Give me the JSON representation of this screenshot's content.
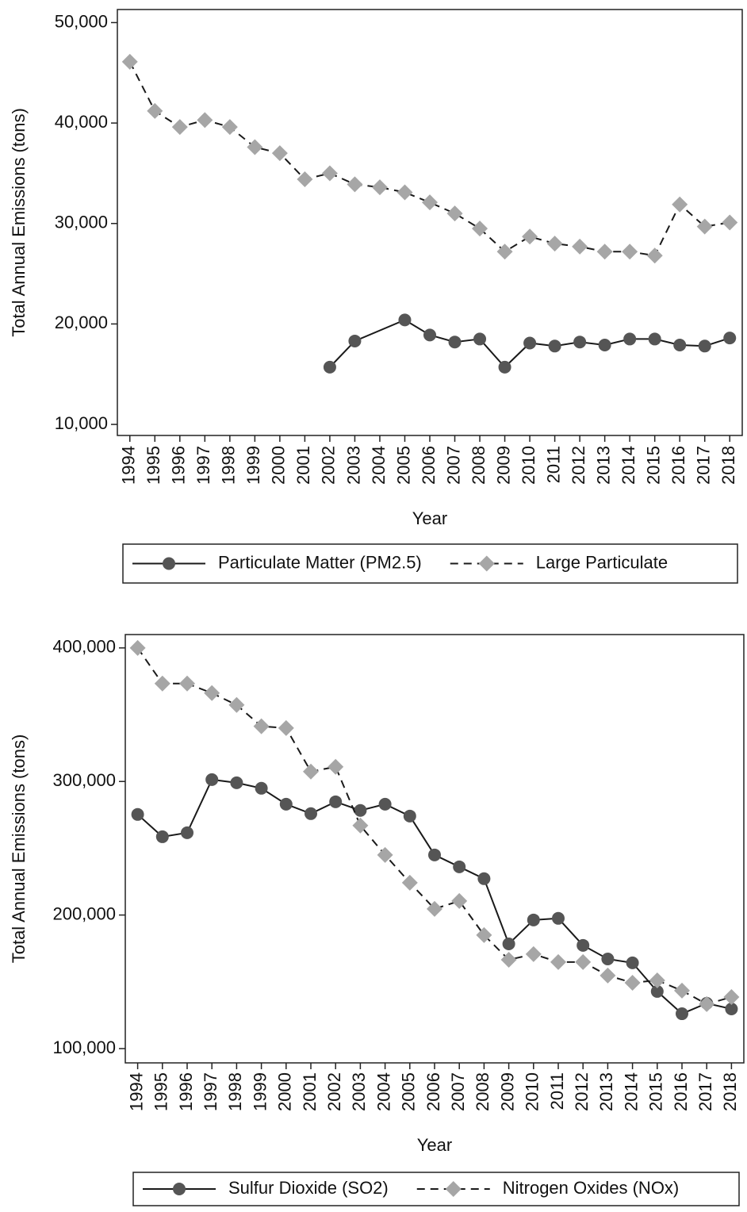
{
  "chart_data": [
    {
      "type": "line",
      "ylabel": "Total Annual Emissions (tons)",
      "xlabel": "Year",
      "x": [
        1994,
        1995,
        1996,
        1997,
        1998,
        1999,
        2000,
        2001,
        2002,
        2003,
        2004,
        2005,
        2006,
        2007,
        2008,
        2009,
        2010,
        2011,
        2012,
        2013,
        2014,
        2015,
        2016,
        2017,
        2018
      ],
      "xlim": [
        1993.5,
        2018.5
      ],
      "xticks": [
        1994,
        1995,
        1996,
        1997,
        1998,
        1999,
        2000,
        2001,
        2002,
        2003,
        2004,
        2005,
        2006,
        2007,
        2008,
        2009,
        2010,
        2011,
        2012,
        2013,
        2014,
        2015,
        2016,
        2017,
        2018
      ],
      "ylim": [
        8900,
        51300
      ],
      "yticks": [
        {
          "value": 10000,
          "label": "10,000"
        },
        {
          "value": 20000,
          "label": "20,000"
        },
        {
          "value": 30000,
          "label": "30,000"
        },
        {
          "value": 40000,
          "label": "40,000"
        },
        {
          "value": 50000,
          "label": "50,000"
        }
      ],
      "series": [
        {
          "name": "Particulate Matter (PM2.5)",
          "color": "#555555",
          "line_color": "#1a1a1a",
          "marker": "circle",
          "dashed": false,
          "x": [
            2002,
            2003,
            2005,
            2006,
            2007,
            2008,
            2009,
            2010,
            2011,
            2012,
            2013,
            2014,
            2015,
            2016,
            2017,
            2018
          ],
          "values": [
            15700,
            18300,
            20400,
            18900,
            18200,
            18500,
            15700,
            18100,
            17800,
            18200,
            17900,
            18500,
            18500,
            17900,
            17800,
            18600
          ]
        },
        {
          "name": "Large Particulate",
          "color": "#a6a6a6",
          "line_color": "#1a1a1a",
          "marker": "diamond",
          "dashed": true,
          "values": [
            46100,
            41200,
            39600,
            40300,
            39600,
            37600,
            37000,
            34400,
            35000,
            33900,
            33600,
            33100,
            32100,
            31000,
            29500,
            27200,
            28700,
            28000,
            27700,
            27200,
            27200,
            26800,
            31900,
            29700,
            30100
          ]
        }
      ]
    },
    {
      "type": "line",
      "ylabel": "Total Annual Emissions (tons)",
      "xlabel": "Year",
      "x": [
        1994,
        1995,
        1996,
        1997,
        1998,
        1999,
        2000,
        2001,
        2002,
        2003,
        2004,
        2005,
        2006,
        2007,
        2008,
        2009,
        2010,
        2011,
        2012,
        2013,
        2014,
        2015,
        2016,
        2017,
        2018
      ],
      "xlim": [
        1993.5,
        2018.5
      ],
      "xticks": [
        1994,
        1995,
        1996,
        1997,
        1998,
        1999,
        2000,
        2001,
        2002,
        2003,
        2004,
        2005,
        2006,
        2007,
        2008,
        2009,
        2010,
        2011,
        2012,
        2013,
        2014,
        2015,
        2016,
        2017,
        2018
      ],
      "ylim": [
        89300,
        410000
      ],
      "yticks": [
        {
          "value": 100000,
          "label": "100,000"
        },
        {
          "value": 200000,
          "label": "200,000"
        },
        {
          "value": 300000,
          "label": "300,000"
        },
        {
          "value": 400000,
          "label": "400,000"
        }
      ],
      "series": [
        {
          "name": "Sulfur Dioxide (SO2)",
          "color": "#555555",
          "line_color": "#1a1a1a",
          "marker": "circle",
          "dashed": false,
          "values": [
            275300,
            258600,
            261600,
            301400,
            299000,
            294900,
            283000,
            275900,
            284800,
            278300,
            283000,
            274100,
            245000,
            236100,
            227200,
            178400,
            196300,
            197500,
            177300,
            167100,
            164200,
            142800,
            126100,
            133900,
            129700
          ]
        },
        {
          "name": "Nitrogen Oxides (NOx)",
          "color": "#a6a6a6",
          "line_color": "#1a1a1a",
          "marker": "diamond",
          "dashed": true,
          "values": [
            400000,
            373300,
            373300,
            366200,
            357300,
            341300,
            340000,
            307400,
            311000,
            267000,
            245000,
            224200,
            204600,
            210500,
            185000,
            166500,
            170700,
            164800,
            164800,
            154700,
            149300,
            151100,
            143400,
            133300,
            138600
          ]
        }
      ]
    }
  ]
}
